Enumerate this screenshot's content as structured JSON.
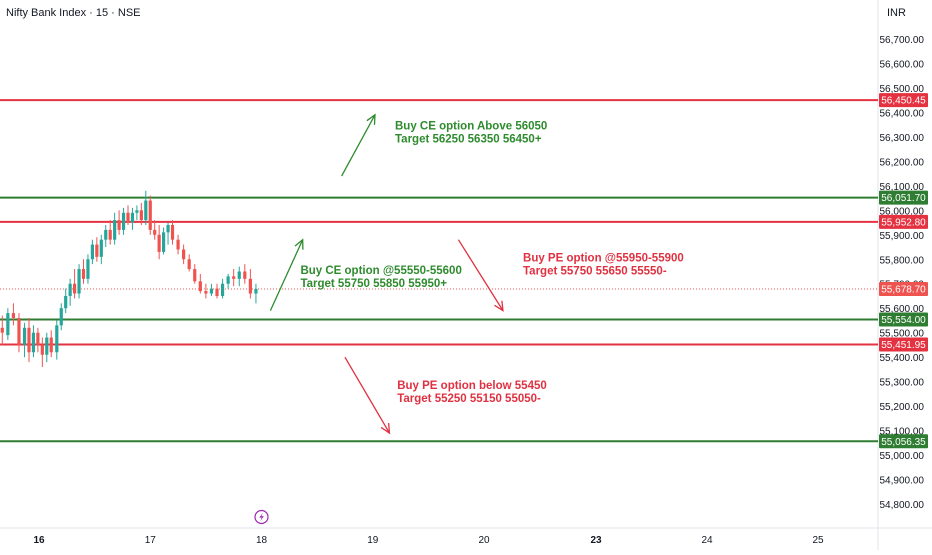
{
  "header": {
    "symbol_title": "Nifty Bank Index · 15 · NSE",
    "currency": "INR"
  },
  "colors": {
    "up": "#26a69a",
    "down": "#ef5350",
    "green_line": "#2e7d32",
    "red_line": "#e53240",
    "annotation_green": "#2e8b2e",
    "annotation_red": "#e03141",
    "axis_text": "#131722",
    "event_icon": "#9c27b0"
  },
  "chart_data": {
    "type": "candlestick",
    "title": "Nifty Bank Index · 15 · NSE",
    "currency": "INR",
    "y_axis": {
      "range": [
        54700,
        56800
      ],
      "tick_labels": [
        "56,700.00",
        "56,600.00",
        "56,500.00",
        "56,400.00",
        "56,300.00",
        "56,200.00",
        "56,100.00",
        "56,000.00",
        "55,900.00",
        "55,800.00",
        "55,700.00",
        "55,600.00",
        "55,500.00",
        "55,400.00",
        "55,300.00",
        "55,200.00",
        "55,100.00",
        "55,000.00",
        "54,900.00",
        "54,800.00"
      ],
      "tick_values": [
        56700,
        56600,
        56500,
        56400,
        56300,
        56200,
        56100,
        56000,
        55900,
        55800,
        55700,
        55600,
        55500,
        55400,
        55300,
        55200,
        55100,
        55000,
        54900,
        54800
      ]
    },
    "x_axis": {
      "tick_labels": [
        "16",
        "17",
        "18",
        "19",
        "20",
        "23",
        "24",
        "25"
      ],
      "tick_values": [
        16,
        17,
        18,
        19,
        20,
        23,
        24,
        25
      ],
      "bold_labels": [
        "16",
        "23"
      ],
      "range": [
        15.65,
        25.75
      ]
    },
    "levels": [
      {
        "value": 56450.45,
        "label": "56,450.45",
        "color": "red"
      },
      {
        "value": 56051.7,
        "label": "56,051.70",
        "color": "green"
      },
      {
        "value": 55952.8,
        "label": "55,952.80",
        "color": "red"
      },
      {
        "value": 55554.0,
        "label": "55,554.00",
        "color": "green"
      },
      {
        "value": 55451.95,
        "label": "55,451.95",
        "color": "red"
      },
      {
        "value": 55056.35,
        "label": "55,056.35",
        "color": "green"
      }
    ],
    "last_price": {
      "value": 55678.7,
      "label": "55,678.70"
    },
    "candles": [
      {
        "t": 15.67,
        "o": 55520,
        "h": 55570,
        "l": 55450,
        "c": 55500
      },
      {
        "t": 15.72,
        "o": 55490,
        "h": 55600,
        "l": 55470,
        "c": 55580
      },
      {
        "t": 15.77,
        "o": 55580,
        "h": 55620,
        "l": 55530,
        "c": 55560
      },
      {
        "t": 15.82,
        "o": 55560,
        "h": 55580,
        "l": 55420,
        "c": 55450
      },
      {
        "t": 15.87,
        "o": 55450,
        "h": 55540,
        "l": 55400,
        "c": 55520
      },
      {
        "t": 15.91,
        "o": 55520,
        "h": 55560,
        "l": 55380,
        "c": 55420
      },
      {
        "t": 15.95,
        "o": 55420,
        "h": 55530,
        "l": 55400,
        "c": 55500
      },
      {
        "t": 15.99,
        "o": 55500,
        "h": 55520,
        "l": 55420,
        "c": 55450
      },
      {
        "t": 16.03,
        "o": 55450,
        "h": 55480,
        "l": 55360,
        "c": 55410
      },
      {
        "t": 16.07,
        "o": 55410,
        "h": 55500,
        "l": 55380,
        "c": 55480
      },
      {
        "t": 16.11,
        "o": 55480,
        "h": 55510,
        "l": 55400,
        "c": 55420
      },
      {
        "t": 16.16,
        "o": 55420,
        "h": 55550,
        "l": 55390,
        "c": 55530
      },
      {
        "t": 16.2,
        "o": 55530,
        "h": 55620,
        "l": 55510,
        "c": 55600
      },
      {
        "t": 16.24,
        "o": 55600,
        "h": 55680,
        "l": 55580,
        "c": 55650
      },
      {
        "t": 16.28,
        "o": 55650,
        "h": 55720,
        "l": 55610,
        "c": 55700
      },
      {
        "t": 16.32,
        "o": 55700,
        "h": 55760,
        "l": 55640,
        "c": 55660
      },
      {
        "t": 16.36,
        "o": 55660,
        "h": 55780,
        "l": 55640,
        "c": 55760
      },
      {
        "t": 16.4,
        "o": 55760,
        "h": 55800,
        "l": 55700,
        "c": 55720
      },
      {
        "t": 16.44,
        "o": 55720,
        "h": 55820,
        "l": 55700,
        "c": 55800
      },
      {
        "t": 16.48,
        "o": 55800,
        "h": 55880,
        "l": 55780,
        "c": 55860
      },
      {
        "t": 16.52,
        "o": 55860,
        "h": 55890,
        "l": 55790,
        "c": 55810
      },
      {
        "t": 16.56,
        "o": 55810,
        "h": 55900,
        "l": 55780,
        "c": 55880
      },
      {
        "t": 16.6,
        "o": 55880,
        "h": 55940,
        "l": 55850,
        "c": 55920
      },
      {
        "t": 16.64,
        "o": 55920,
        "h": 55960,
        "l": 55860,
        "c": 55880
      },
      {
        "t": 16.68,
        "o": 55880,
        "h": 55990,
        "l": 55860,
        "c": 55960
      },
      {
        "t": 16.72,
        "o": 55960,
        "h": 56000,
        "l": 55900,
        "c": 55920
      },
      {
        "t": 16.76,
        "o": 55920,
        "h": 56010,
        "l": 55900,
        "c": 55990
      },
      {
        "t": 16.8,
        "o": 55990,
        "h": 56020,
        "l": 55940,
        "c": 55950
      },
      {
        "t": 16.84,
        "o": 55950,
        "h": 56010,
        "l": 55920,
        "c": 55990
      },
      {
        "t": 16.88,
        "o": 55990,
        "h": 56020,
        "l": 55960,
        "c": 56000
      },
      {
        "t": 16.92,
        "o": 56000,
        "h": 56030,
        "l": 55940,
        "c": 55960
      },
      {
        "t": 16.96,
        "o": 55960,
        "h": 56080,
        "l": 55940,
        "c": 56040
      },
      {
        "t": 17.0,
        "o": 56040,
        "h": 56060,
        "l": 55900,
        "c": 55920
      },
      {
        "t": 17.04,
        "o": 55920,
        "h": 55960,
        "l": 55880,
        "c": 55900
      },
      {
        "t": 17.08,
        "o": 55900,
        "h": 55940,
        "l": 55800,
        "c": 55830
      },
      {
        "t": 17.12,
        "o": 55830,
        "h": 55930,
        "l": 55820,
        "c": 55910
      },
      {
        "t": 17.16,
        "o": 55910,
        "h": 55950,
        "l": 55860,
        "c": 55940
      },
      {
        "t": 17.2,
        "o": 55940,
        "h": 55960,
        "l": 55860,
        "c": 55880
      },
      {
        "t": 17.25,
        "o": 55880,
        "h": 55900,
        "l": 55820,
        "c": 55840
      },
      {
        "t": 17.3,
        "o": 55840,
        "h": 55860,
        "l": 55780,
        "c": 55800
      },
      {
        "t": 17.35,
        "o": 55800,
        "h": 55820,
        "l": 55750,
        "c": 55760
      },
      {
        "t": 17.4,
        "o": 55760,
        "h": 55780,
        "l": 55700,
        "c": 55710
      },
      {
        "t": 17.45,
        "o": 55710,
        "h": 55740,
        "l": 55660,
        "c": 55670
      },
      {
        "t": 17.5,
        "o": 55670,
        "h": 55700,
        "l": 55640,
        "c": 55660
      },
      {
        "t": 17.55,
        "o": 55660,
        "h": 55700,
        "l": 55650,
        "c": 55680
      },
      {
        "t": 17.6,
        "o": 55680,
        "h": 55700,
        "l": 55640,
        "c": 55650
      },
      {
        "t": 17.65,
        "o": 55650,
        "h": 55720,
        "l": 55640,
        "c": 55700
      },
      {
        "t": 17.7,
        "o": 55700,
        "h": 55740,
        "l": 55680,
        "c": 55730
      },
      {
        "t": 17.75,
        "o": 55730,
        "h": 55760,
        "l": 55690,
        "c": 55720
      },
      {
        "t": 17.8,
        "o": 55720,
        "h": 55770,
        "l": 55690,
        "c": 55750
      },
      {
        "t": 17.85,
        "o": 55750,
        "h": 55780,
        "l": 55700,
        "c": 55720
      },
      {
        "t": 17.9,
        "o": 55720,
        "h": 55760,
        "l": 55640,
        "c": 55660
      },
      {
        "t": 17.95,
        "o": 55660,
        "h": 55700,
        "l": 55620,
        "c": 55679
      }
    ],
    "annotations": [
      {
        "lines": [
          "Buy CE option Above 56050",
          "Target 56250 56350 56450+"
        ],
        "color": "green",
        "at_x": 19.2,
        "at_value": 56330
      },
      {
        "lines": [
          "Buy CE option @55550-55600",
          "Target 55750 55850 55950+"
        ],
        "color": "green",
        "at_x": 18.35,
        "at_value": 55740
      },
      {
        "lines": [
          "Buy PE option @55950-55900",
          "Target 55750 55650 55550-"
        ],
        "color": "red",
        "at_x": 20.35,
        "at_value": 55790
      },
      {
        "lines": [
          "Buy PE option below 55450",
          "Target 55250 55150 55050-"
        ],
        "color": "red",
        "at_x": 19.22,
        "at_value": 55270
      }
    ],
    "arrows": [
      {
        "color": "green",
        "from": {
          "x": 18.72,
          "v": 56140
        },
        "to": {
          "x": 19.02,
          "v": 56390
        }
      },
      {
        "color": "green",
        "from": {
          "x": 18.08,
          "v": 55590
        },
        "to": {
          "x": 18.37,
          "v": 55880
        }
      },
      {
        "color": "red",
        "from": {
          "x": 19.77,
          "v": 55880
        },
        "to": {
          "x": 20.17,
          "v": 55590
        }
      },
      {
        "color": "red",
        "from": {
          "x": 18.75,
          "v": 55400
        },
        "to": {
          "x": 19.15,
          "v": 55090
        }
      }
    ],
    "event_marker": {
      "x": 18.0,
      "icon": "lightning-icon"
    },
    "grid": false,
    "legend": "none"
  }
}
